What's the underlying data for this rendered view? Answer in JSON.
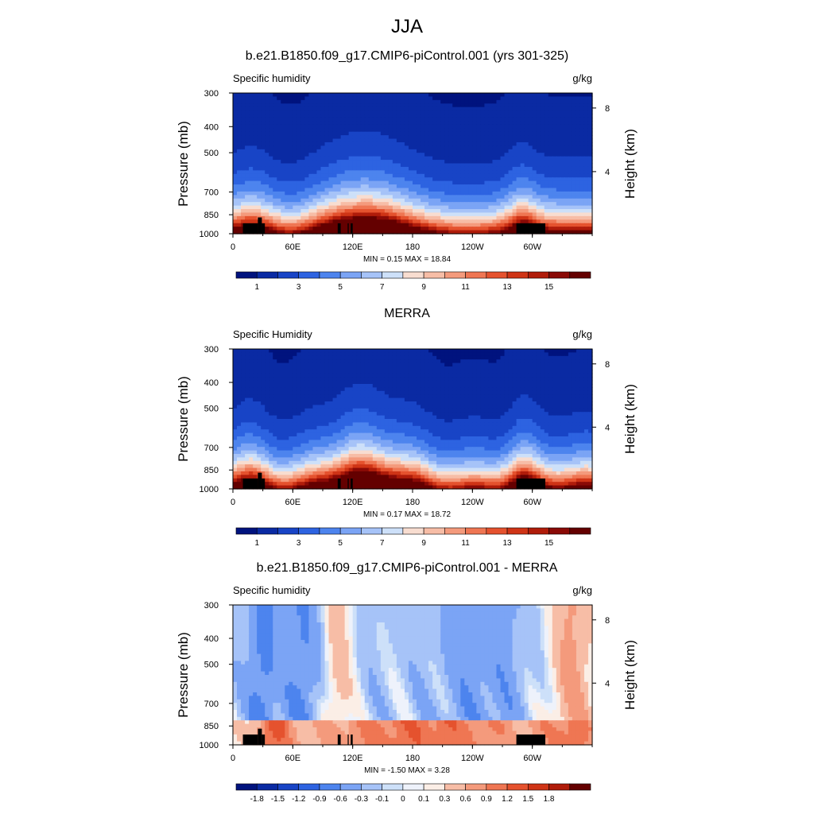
{
  "main_title": "JJA",
  "chart_data": [
    {
      "type": "heatmap",
      "title": "b.e21.B1850.f09_g17.CMIP6-piControl.001 (yrs 301-325)",
      "left_label": "Specific humidity",
      "right_label": "g/kg",
      "ylabel": "Pressure (mb)",
      "y2label": "Height (km)",
      "xlim": [
        0,
        360
      ],
      "ylim": [
        1000,
        300
      ],
      "x_ticks": [
        "0",
        "60E",
        "120E",
        "180",
        "120W",
        "60W"
      ],
      "x_tick_values": [
        0,
        60,
        120,
        180,
        240,
        300
      ],
      "y_ticks": [
        "300",
        "400",
        "500",
        "700",
        "850",
        "1000"
      ],
      "y_tick_values": [
        300,
        400,
        500,
        700,
        850,
        1000
      ],
      "y2_ticks": [
        "8",
        "4"
      ],
      "y2_tick_values": [
        8,
        4
      ],
      "stats": "MIN =   0.15  MAX =  18.84",
      "colorbar_labels": [
        "1",
        "3",
        "5",
        "7",
        "9",
        "11",
        "13",
        "15"
      ],
      "colorbar_colors": [
        "#00137e",
        "#0a2aa3",
        "#1844c6",
        "#2d63e1",
        "#4d84ee",
        "#7ba4f5",
        "#a6c3f8",
        "#cde0f9",
        "#f8ddd0",
        "#f7bda6",
        "#f49a7c",
        "#ef7653",
        "#e5522e",
        "#cf3416",
        "#b01c0a",
        "#8a0a06",
        "#640000"
      ],
      "contour_levels": [
        0.5,
        1.5,
        2.5,
        3.5,
        4.5,
        5.5,
        6.5,
        7.5,
        8.5,
        9.5,
        10.5,
        11.5,
        12.5,
        13.5,
        14.5,
        15.5,
        16.5
      ]
    },
    {
      "type": "heatmap",
      "title": "MERRA",
      "left_label": "Specific Humidity",
      "right_label": "g/kg",
      "ylabel": "Pressure (mb)",
      "y2label": "Height (km)",
      "xlim": [
        0,
        360
      ],
      "ylim": [
        1000,
        300
      ],
      "x_ticks": [
        "0",
        "60E",
        "120E",
        "180",
        "120W",
        "60W"
      ],
      "x_tick_values": [
        0,
        60,
        120,
        180,
        240,
        300
      ],
      "y_ticks": [
        "300",
        "400",
        "500",
        "700",
        "850",
        "1000"
      ],
      "y_tick_values": [
        300,
        400,
        500,
        700,
        850,
        1000
      ],
      "y2_ticks": [
        "8",
        "4"
      ],
      "y2_tick_values": [
        8,
        4
      ],
      "stats": "MIN =   0.17  MAX =  18.72",
      "colorbar_labels": [
        "1",
        "3",
        "5",
        "7",
        "9",
        "11",
        "13",
        "15"
      ],
      "colorbar_colors": [
        "#00137e",
        "#0a2aa3",
        "#1844c6",
        "#2d63e1",
        "#4d84ee",
        "#7ba4f5",
        "#a6c3f8",
        "#cde0f9",
        "#f8ddd0",
        "#f7bda6",
        "#f49a7c",
        "#ef7653",
        "#e5522e",
        "#cf3416",
        "#b01c0a",
        "#8a0a06",
        "#640000"
      ],
      "contour_levels": [
        0.5,
        1.5,
        2.5,
        3.5,
        4.5,
        5.5,
        6.5,
        7.5,
        8.5,
        9.5,
        10.5,
        11.5,
        12.5,
        13.5,
        14.5,
        15.5,
        16.5
      ]
    },
    {
      "type": "heatmap",
      "title": "b.e21.B1850.f09_g17.CMIP6-piControl.001 - MERRA",
      "left_label": "Specific humidity",
      "right_label": "g/kg",
      "ylabel": "Pressure (mb)",
      "y2label": "Height (km)",
      "xlim": [
        0,
        360
      ],
      "ylim": [
        1000,
        300
      ],
      "x_ticks": [
        "0",
        "60E",
        "120E",
        "180",
        "120W",
        "60W"
      ],
      "x_tick_values": [
        0,
        60,
        120,
        180,
        240,
        300
      ],
      "y_ticks": [
        "300",
        "400",
        "500",
        "700",
        "850",
        "1000"
      ],
      "y_tick_values": [
        300,
        400,
        500,
        700,
        850,
        1000
      ],
      "y2_ticks": [
        "8",
        "4"
      ],
      "y2_tick_values": [
        8,
        4
      ],
      "stats": "MIN =  -1.50  MAX =   3.28",
      "colorbar_labels": [
        "-1.8",
        "-1.5",
        "-1.2",
        "-0.9",
        "-0.6",
        "-0.3",
        "-0.1",
        "0",
        "0.1",
        "0.3",
        "0.6",
        "0.9",
        "1.2",
        "1.5",
        "1.8"
      ],
      "colorbar_colors": [
        "#00137e",
        "#0a2aa3",
        "#1844c6",
        "#2d63e1",
        "#4d84ee",
        "#7ba4f5",
        "#a6c3f8",
        "#cde0f9",
        "#eef2fb",
        "#fbeee6",
        "#f7bda6",
        "#f49a7c",
        "#ef7653",
        "#e5522e",
        "#cf3416",
        "#b01c0a",
        "#640000"
      ],
      "contour_levels": [
        -1.8,
        -1.5,
        -1.2,
        -0.9,
        -0.6,
        -0.3,
        -0.1,
        0,
        0.1,
        0.3,
        0.6,
        0.9,
        1.2,
        1.5,
        1.8
      ]
    }
  ]
}
